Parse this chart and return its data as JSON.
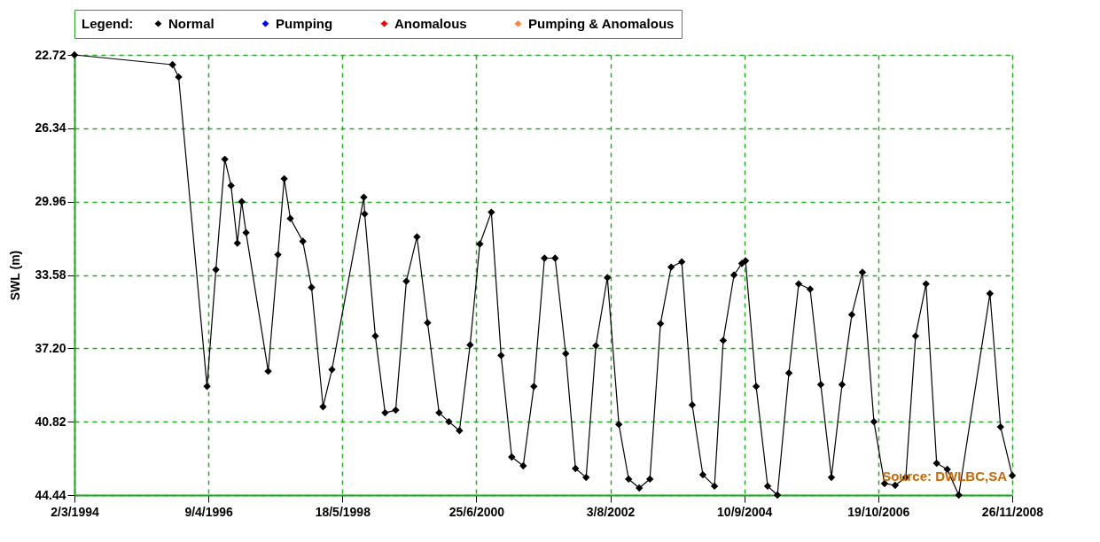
{
  "chart_data": {
    "type": "line",
    "ylabel": "SWL (m)",
    "legend_title": "Legend:",
    "legend": "top",
    "grid": true,
    "marker": "diamond",
    "line_style": "solid",
    "annotations": [
      "Source: DWLBC,SA"
    ],
    "xlim": [
      "1994-03-02",
      "2008-11-26"
    ],
    "xticks": [
      {
        "value": "1994-03-02",
        "label": "2/3/1994"
      },
      {
        "value": "1996-04-09",
        "label": "9/4/1996"
      },
      {
        "value": "1998-05-18",
        "label": "18/5/1998"
      },
      {
        "value": "2000-06-25",
        "label": "25/6/2000"
      },
      {
        "value": "2002-08-03",
        "label": "3/8/2002"
      },
      {
        "value": "2004-09-10",
        "label": "10/9/2004"
      },
      {
        "value": "2006-10-19",
        "label": "19/10/2006"
      },
      {
        "value": "2008-11-26",
        "label": "26/11/2008"
      }
    ],
    "ylim": [
      44.44,
      22.72
    ],
    "yticks": [
      22.72,
      26.34,
      29.96,
      33.58,
      {
        "value": 37.2,
        "label": "37.20"
      },
      40.82,
      44.44
    ],
    "x": [
      "1994-03-02",
      "1995-09-16",
      "1995-10-21",
      "1996-04-01",
      "1996-05-22",
      "1996-07-12",
      "1996-08-17",
      "1996-09-22",
      "1996-10-17",
      "1996-11-11",
      "1997-03-18",
      "1997-05-13",
      "1997-06-18",
      "1997-07-23",
      "1997-10-03",
      "1997-11-22",
      "1998-01-27",
      "1998-03-19",
      "1998-09-18",
      "1998-09-23",
      "1998-11-23",
      "1999-01-18",
      "1999-03-20",
      "1999-05-20",
      "1999-07-20",
      "1999-09-19",
      "1999-11-24",
      "2000-01-19",
      "2000-03-20",
      "2000-05-20",
      "2000-07-15",
      "2000-09-19",
      "2000-11-14",
      "2001-01-14",
      "2001-03-21",
      "2001-05-21",
      "2001-07-21",
      "2001-09-20",
      "2001-11-20",
      "2002-01-15",
      "2002-03-17",
      "2002-05-12",
      "2002-07-17",
      "2002-09-21",
      "2002-11-16",
      "2003-01-16",
      "2003-03-18",
      "2003-05-18",
      "2003-07-18",
      "2003-09-17",
      "2003-11-16",
      "2004-01-16",
      "2004-03-23",
      "2004-05-12",
      "2004-07-13",
      "2004-08-27",
      "2004-09-17",
      "2004-11-17",
      "2005-01-22",
      "2005-03-19",
      "2005-05-24",
      "2005-07-19",
      "2005-09-23",
      "2005-11-23",
      "2006-01-23",
      "2006-03-25",
      "2006-05-20",
      "2006-07-20",
      "2006-09-24",
      "2006-11-24",
      "2007-01-24",
      "2007-03-26",
      "2007-05-21",
      "2007-07-20",
      "2007-09-19",
      "2007-11-19",
      "2008-01-24",
      "2008-07-21",
      "2008-09-20",
      "2008-11-26"
    ],
    "series": [
      {
        "name": "Normal",
        "color": "#000000",
        "values": [
          22.72,
          23.2,
          23.81,
          39.08,
          33.32,
          27.87,
          29.17,
          32.01,
          29.96,
          31.49,
          38.33,
          32.58,
          28.83,
          30.79,
          31.92,
          34.19,
          40.08,
          38.25,
          29.74,
          30.57,
          36.59,
          40.38,
          40.25,
          33.89,
          31.7,
          35.94,
          40.38,
          40.82,
          41.26,
          37.03,
          32.05,
          30.48,
          37.55,
          42.56,
          43.0,
          39.08,
          32.75,
          32.75,
          37.46,
          43.13,
          43.57,
          37.07,
          33.71,
          40.95,
          43.65,
          44.09,
          43.65,
          35.98,
          33.19,
          32.93,
          39.99,
          43.44,
          44.0,
          36.81,
          33.58,
          33.01,
          32.88,
          39.08,
          44.0,
          44.44,
          38.42,
          34.02,
          34.28,
          38.99,
          43.57,
          38.99,
          35.54,
          33.45,
          40.82,
          43.87,
          43.96,
          43.57,
          36.59,
          34.02,
          42.87,
          43.17,
          44.44,
          34.5,
          41.08,
          43.48
        ]
      },
      {
        "name": "Pumping",
        "color": "#0000ff",
        "values": [
          null,
          null,
          null,
          null,
          null,
          null,
          null,
          null,
          null,
          null,
          null,
          null,
          null,
          null,
          null,
          null,
          null,
          null,
          null,
          null,
          null,
          null,
          null,
          null,
          null,
          null,
          null,
          null,
          null,
          null,
          null,
          null,
          null,
          null,
          null,
          null,
          null,
          null,
          null,
          null,
          null,
          null,
          null,
          null,
          null,
          null,
          null,
          null,
          null,
          null,
          null,
          null,
          null,
          null,
          null,
          null,
          null,
          null,
          null,
          null,
          null,
          null,
          null,
          null,
          null,
          null,
          null,
          null,
          null,
          null,
          null,
          null,
          null,
          null,
          null,
          null,
          null,
          null,
          null,
          null
        ]
      },
      {
        "name": "Anomalous",
        "color": "#ff0000",
        "values": [
          null,
          null,
          null,
          null,
          null,
          null,
          null,
          null,
          null,
          null,
          null,
          null,
          null,
          null,
          null,
          null,
          null,
          null,
          null,
          null,
          null,
          null,
          null,
          null,
          null,
          null,
          null,
          null,
          null,
          null,
          null,
          null,
          null,
          null,
          null,
          null,
          null,
          null,
          null,
          null,
          null,
          null,
          null,
          null,
          null,
          null,
          null,
          null,
          null,
          null,
          null,
          null,
          null,
          null,
          null,
          null,
          null,
          null,
          null,
          null,
          null,
          null,
          null,
          null,
          null,
          null,
          null,
          null,
          null,
          null,
          null,
          null,
          null,
          null,
          null,
          null,
          null,
          null,
          null,
          null
        ]
      },
      {
        "name": "Pumping & Anomalous",
        "color": "#ff8040",
        "values": [
          null,
          null,
          null,
          null,
          null,
          null,
          null,
          null,
          null,
          null,
          null,
          null,
          null,
          null,
          null,
          null,
          null,
          null,
          null,
          null,
          null,
          null,
          null,
          null,
          null,
          null,
          null,
          null,
          null,
          null,
          null,
          null,
          null,
          null,
          null,
          null,
          null,
          null,
          null,
          null,
          null,
          null,
          null,
          null,
          null,
          null,
          null,
          null,
          null,
          null,
          null,
          null,
          null,
          null,
          null,
          null,
          null,
          null,
          null,
          null,
          null,
          null,
          null,
          null,
          null,
          null,
          null,
          null,
          null,
          null,
          null,
          null,
          null,
          null,
          null,
          null,
          null,
          null,
          null,
          null
        ]
      }
    ]
  }
}
